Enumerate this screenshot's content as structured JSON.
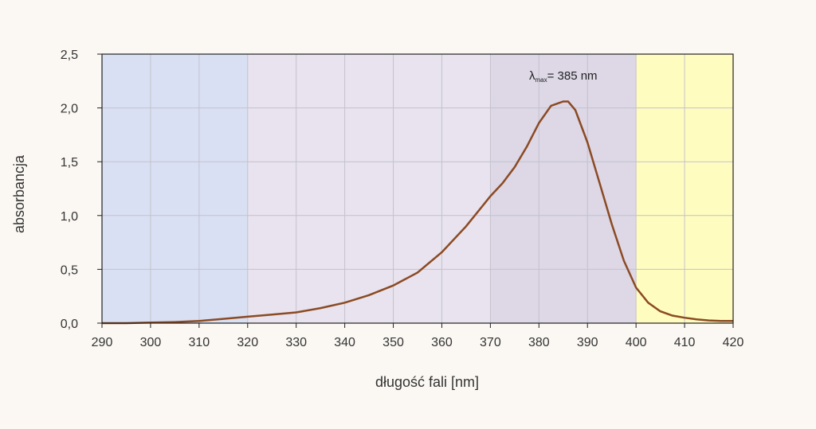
{
  "chart_data": {
    "type": "line",
    "xlabel": "długość fali [nm]",
    "ylabel": "absorbancja",
    "xlim": [
      290,
      420
    ],
    "ylim": [
      0,
      2.5
    ],
    "x_ticks": [
      "290",
      "300",
      "310",
      "320",
      "330",
      "340",
      "350",
      "360",
      "370",
      "380",
      "390",
      "400",
      "410",
      "420"
    ],
    "y_ticks": [
      "0,0",
      "0,5",
      "1,0",
      "1,5",
      "2,0",
      "2,5"
    ],
    "grid": true,
    "bands": [
      {
        "from": 290,
        "to": 320,
        "color": "#d9e0f3"
      },
      {
        "from": 320,
        "to": 370,
        "color": "#e8e3ee"
      },
      {
        "from": 370,
        "to": 400,
        "color": "#ddd7e6"
      },
      {
        "from": 400,
        "to": 420,
        "color": "#fffcc0"
      }
    ],
    "line_color": "#8b4a22",
    "series": [
      {
        "x": [
          290,
          295,
          300,
          305,
          310,
          315,
          320,
          325,
          330,
          335,
          340,
          345,
          350,
          355,
          360,
          365,
          370,
          372.5,
          375,
          377.5,
          380,
          382.5,
          385,
          386,
          387.5,
          390,
          392.5,
          395,
          397.5,
          400,
          402.5,
          405,
          407.5,
          410,
          412.5,
          415,
          417.5,
          420
        ],
        "values": [
          0,
          0,
          0.005,
          0.01,
          0.02,
          0.04,
          0.06,
          0.08,
          0.1,
          0.14,
          0.19,
          0.26,
          0.35,
          0.47,
          0.66,
          0.9,
          1.18,
          1.3,
          1.45,
          1.64,
          1.86,
          2.02,
          2.06,
          2.06,
          1.98,
          1.68,
          1.3,
          0.92,
          0.58,
          0.33,
          0.19,
          0.11,
          0.07,
          0.05,
          0.035,
          0.025,
          0.02,
          0.02
        ]
      }
    ],
    "annotations": [
      {
        "symbol": "λ",
        "subscript": "max",
        "text": "= 385 nm",
        "x": 385,
        "y": 2.3
      }
    ]
  }
}
